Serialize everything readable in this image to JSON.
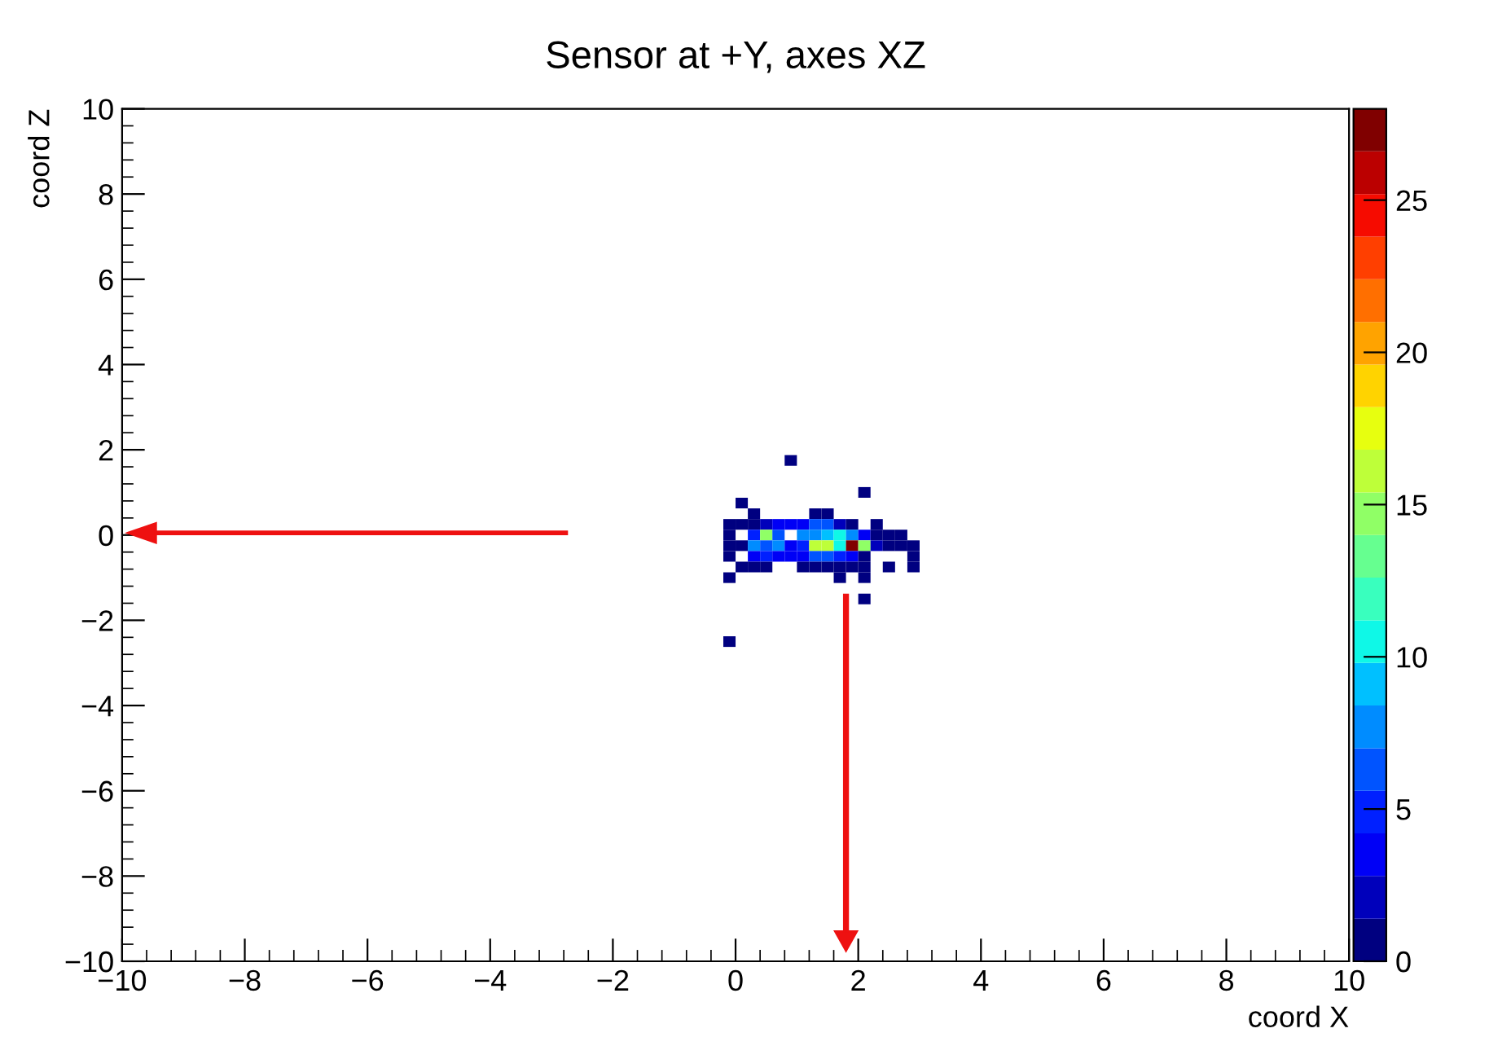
{
  "chart_data": {
    "type": "scatter",
    "title": "Sensor at +Y, axes XZ",
    "xlabel": "coord X",
    "ylabel": "coord Z",
    "marker": "square",
    "xlim": [
      -10,
      10
    ],
    "xticks": [
      -10,
      -8,
      -6,
      -4,
      -2,
      0,
      2,
      4,
      6,
      8,
      10
    ],
    "ylim": [
      -10,
      10
    ],
    "yticks": [
      -10,
      -8,
      -6,
      -4,
      -2,
      0,
      2,
      4,
      6,
      8,
      10
    ],
    "clim": [
      0,
      28
    ],
    "cticks": [
      0,
      5,
      10,
      15,
      20,
      25
    ],
    "grid": false,
    "series": [
      {
        "x": [
          0.9,
          2.1,
          0.1,
          0.3,
          1.3,
          1.5,
          -0.1,
          0.1,
          0.3,
          0.5,
          0.7,
          0.9,
          1.1,
          1.3,
          1.5,
          1.7,
          1.9,
          2.3,
          -0.1,
          0.3,
          0.5,
          0.7,
          1.1,
          1.3,
          1.5,
          1.7,
          1.9,
          2.1,
          2.3,
          2.5,
          2.7,
          -0.1,
          0.1,
          0.3,
          0.5,
          0.7,
          0.9,
          1.1,
          1.3,
          1.5,
          1.7,
          1.9,
          2.1,
          2.3,
          2.5,
          2.7,
          2.9,
          -0.1,
          0.3,
          0.5,
          0.7,
          0.9,
          1.1,
          1.3,
          1.5,
          1.7,
          1.9,
          2.1,
          2.9,
          0.1,
          0.3,
          0.5,
          1.1,
          1.3,
          1.5,
          1.7,
          1.9,
          2.1,
          2.5,
          2.9,
          -0.1,
          1.7,
          2.1,
          2.1,
          -0.1
        ],
        "values": [
          1.75,
          1.0,
          0.75,
          0.5,
          0.5,
          0.5,
          0.25,
          0.25,
          0.25,
          0.25,
          0.25,
          0.25,
          0.25,
          0.25,
          0.25,
          0.25,
          0.25,
          0.25,
          0,
          0,
          0,
          0,
          0,
          0,
          0,
          0,
          0,
          0,
          0,
          0,
          0,
          -0.25,
          -0.25,
          -0.25,
          -0.25,
          -0.25,
          -0.25,
          -0.25,
          -0.25,
          -0.25,
          -0.25,
          -0.25,
          -0.25,
          -0.25,
          -0.25,
          -0.25,
          -0.25,
          -0.5,
          -0.5,
          -0.5,
          -0.5,
          -0.5,
          -0.5,
          -0.5,
          -0.5,
          -0.5,
          -0.5,
          -0.5,
          -0.5,
          -0.75,
          -0.75,
          -0.75,
          -0.75,
          -0.75,
          -0.75,
          -0.75,
          -0.75,
          -0.75,
          -0.75,
          -0.75,
          -1.0,
          -1.0,
          -1.0,
          -1.5,
          -2.5
        ],
        "cvalues": [
          1,
          1,
          1,
          1,
          1,
          1,
          1,
          1,
          1,
          2,
          3,
          3,
          4,
          6,
          6,
          2,
          1,
          1,
          1,
          5,
          14,
          6,
          7,
          8,
          9,
          10,
          7,
          3,
          1,
          1,
          1,
          1,
          1,
          8,
          6,
          7,
          4,
          5,
          16,
          16,
          10,
          27,
          15,
          2,
          1,
          1,
          1,
          1,
          4,
          5,
          4,
          3,
          3,
          6,
          6,
          5,
          3,
          1,
          1,
          1,
          1,
          1,
          1,
          1,
          1,
          1,
          1,
          1,
          1,
          1,
          1,
          1,
          1,
          1,
          1
        ]
      }
    ]
  }
}
